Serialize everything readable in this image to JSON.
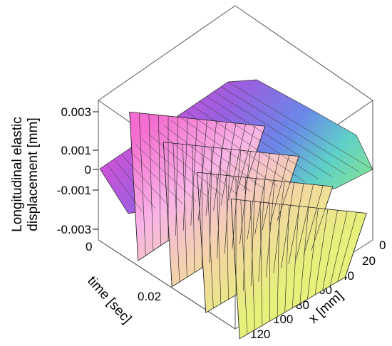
{
  "chart_data": {
    "type": "surface3d",
    "title": "",
    "zlabel_line1": "Longitudinal elastic",
    "zlabel_line2": "displacement [mm]",
    "xlabel": "x [mm]",
    "ylabel": "time [sec]",
    "z_ticks": [
      "0.003",
      "0.001",
      "0",
      "-0.001",
      "-0.003"
    ],
    "time_ticks": [
      "0",
      "0.02"
    ],
    "x_ticks": [
      "0",
      "20",
      "40",
      "60",
      "80",
      "100",
      "120"
    ],
    "z_range": [
      -0.003,
      0.003
    ],
    "x_range": [
      0,
      120
    ],
    "time_range": [
      0,
      0.04
    ],
    "colormap": "rainbow (pink-magenta-blue-cyan-green-yellow)",
    "peaks": [
      {
        "time": 0.005,
        "amplitude": 0.002
      },
      {
        "time": 0.015,
        "amplitude": 0.0018
      },
      {
        "time": 0.025,
        "amplitude": 0.0016
      },
      {
        "time": 0.035,
        "amplitude": 0.0015
      }
    ]
  }
}
